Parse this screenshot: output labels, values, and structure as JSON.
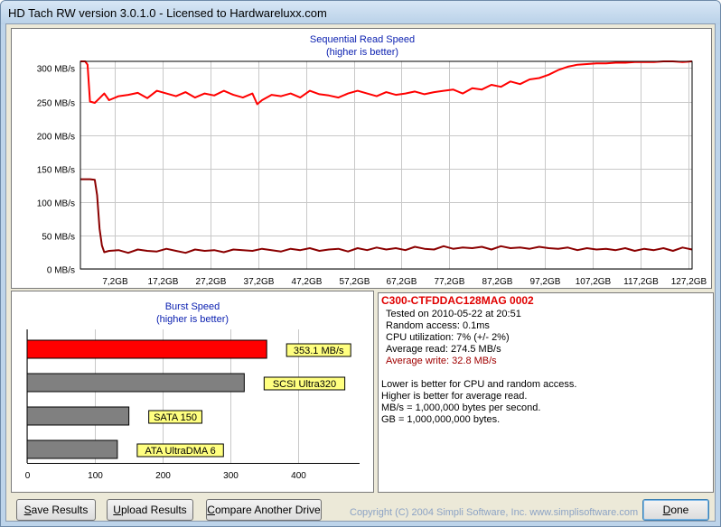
{
  "window": {
    "title": "HD Tach RW version 3.0.1.0 - Licensed to Hardwareluxx.com"
  },
  "seq_chart": {
    "title": "Sequential Read Speed",
    "subtitle": "(higher is better)"
  },
  "burst_chart": {
    "title": "Burst Speed",
    "subtitle": "(higher is better)"
  },
  "chart_data": [
    {
      "type": "line",
      "title": "Sequential Read Speed",
      "subtitle": "(higher is better)",
      "xlabel": "",
      "ylabel": "",
      "x_ticks": [
        "7,2GB",
        "17,2GB",
        "27,2GB",
        "37,2GB",
        "47,2GB",
        "57,2GB",
        "67,2GB",
        "77,2GB",
        "87,2GB",
        "97,2GB",
        "107,2GB",
        "117,2GB",
        "127,2GB"
      ],
      "y_ticks": [
        "0 MB/s",
        "50 MB/s",
        "100 MB/s",
        "150 MB/s",
        "200 MB/s",
        "250 MB/s",
        "300 MB/s"
      ],
      "xlim": [
        0,
        128
      ],
      "ylim": [
        0,
        310
      ],
      "grid": true,
      "series": [
        {
          "name": "Average read",
          "color": "#ff0000",
          "x": [
            0,
            1,
            1.5,
            2,
            3,
            4,
            5,
            6,
            8,
            10,
            12,
            14,
            16,
            18,
            20,
            22,
            24,
            26,
            28,
            30,
            32,
            34,
            36,
            37,
            38,
            40,
            42,
            44,
            46,
            48,
            50,
            52,
            54,
            56,
            58,
            60,
            62,
            64,
            66,
            68,
            70,
            72,
            74,
            76,
            78,
            80,
            82,
            84,
            86,
            88,
            90,
            92,
            94,
            96,
            98,
            100,
            102,
            104,
            106,
            108,
            110,
            112,
            114,
            116,
            118,
            120,
            122,
            124,
            126,
            128
          ],
          "values": [
            310,
            310,
            305,
            250,
            248,
            255,
            262,
            252,
            258,
            260,
            263,
            255,
            266,
            262,
            258,
            264,
            256,
            262,
            259,
            266,
            260,
            256,
            262,
            246,
            252,
            260,
            258,
            262,
            256,
            266,
            261,
            259,
            256,
            262,
            266,
            262,
            258,
            264,
            260,
            262,
            265,
            261,
            264,
            266,
            268,
            262,
            270,
            268,
            275,
            272,
            280,
            276,
            283,
            285,
            290,
            297,
            302,
            305,
            306,
            307,
            307,
            308,
            308,
            309,
            309,
            309,
            310,
            310,
            309,
            310
          ]
        },
        {
          "name": "Average write",
          "color": "#8b0000",
          "x": [
            0,
            2,
            3,
            3.5,
            4,
            4.5,
            5,
            6,
            8,
            10,
            12,
            14,
            16,
            18,
            20,
            22,
            24,
            26,
            28,
            30,
            32,
            34,
            36,
            38,
            40,
            42,
            44,
            46,
            48,
            50,
            52,
            54,
            56,
            58,
            60,
            62,
            64,
            66,
            68,
            70,
            72,
            74,
            76,
            78,
            80,
            82,
            84,
            86,
            88,
            90,
            92,
            94,
            96,
            98,
            100,
            102,
            104,
            106,
            108,
            110,
            112,
            114,
            116,
            118,
            120,
            122,
            124,
            126,
            128
          ],
          "values": [
            134,
            134,
            133,
            110,
            60,
            35,
            25,
            27,
            28,
            24,
            29,
            27,
            26,
            30,
            27,
            24,
            29,
            27,
            28,
            25,
            29,
            28,
            27,
            30,
            28,
            26,
            30,
            28,
            31,
            27,
            29,
            30,
            26,
            31,
            28,
            32,
            29,
            31,
            28,
            33,
            30,
            29,
            34,
            30,
            32,
            31,
            33,
            29,
            34,
            31,
            32,
            30,
            33,
            31,
            30,
            32,
            28,
            31,
            29,
            30,
            28,
            31,
            27,
            30,
            28,
            31,
            27,
            32,
            29
          ]
        }
      ]
    },
    {
      "type": "bar",
      "orientation": "horizontal",
      "title": "Burst Speed",
      "subtitle": "(higher is better)",
      "x_ticks": [
        "0",
        "100",
        "200",
        "300",
        "400"
      ],
      "xlim": [
        0,
        490
      ],
      "grid": true,
      "categories": [
        "353.1 MB/s",
        "SCSI Ultra320",
        "SATA 150",
        "ATA UltraDMA 6"
      ],
      "values": [
        353.1,
        320,
        150,
        133
      ],
      "colors": [
        "#ff0000",
        "#808080",
        "#808080",
        "#808080"
      ]
    }
  ],
  "info": {
    "drive_name": "C300-CTFDDAC128MAG  0002",
    "tested_on": "Tested on 2010-05-22 at 20:51",
    "random_access": "Random access: 0.1ms",
    "cpu_utilization": "CPU utilization: 7% (+/- 2%)",
    "average_read": "Average read: 274.5 MB/s",
    "average_write": "Average write: 32.8 MB/s",
    "note1": "Lower is better for CPU and random access.",
    "note2": "Higher is better for average read.",
    "note3": "MB/s = 1,000,000 bytes per second.",
    "note4": "GB = 1,000,000,000 bytes."
  },
  "buttons": {
    "save": {
      "u": "S",
      "rest": "ave Results"
    },
    "upload": {
      "u": "U",
      "rest": "pload Results"
    },
    "compare": {
      "u": "C",
      "rest": "ompare Another Drive"
    },
    "done": {
      "u": "D",
      "rest": "one"
    }
  },
  "footer": {
    "copyright": "Copyright (C) 2004 Simpli Software, Inc. www.simplisoftware.com"
  },
  "colors": {
    "read_line": "#ff0000",
    "write_line": "#8b0000",
    "title_blue": "#0a1fb0",
    "label_yellow": "#ffff80"
  }
}
